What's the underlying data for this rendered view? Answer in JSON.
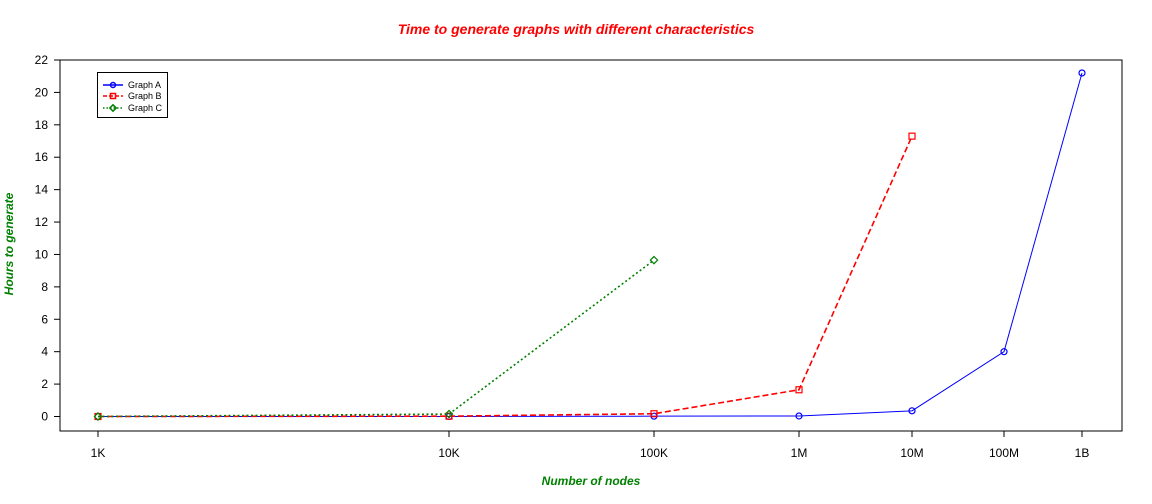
{
  "chart_data": {
    "type": "line",
    "title": "Time to generate graphs with different characteristics",
    "xlabel": "Number of nodes",
    "ylabel": "Hours to generate",
    "x_scale": "log",
    "x": [
      1000,
      10000,
      100000,
      1000000,
      10000000,
      100000000,
      1000000000
    ],
    "xtick_labels": [
      "1K",
      "10K",
      "100K",
      "1M",
      "10M",
      "100M",
      "1B"
    ],
    "ylim": [
      0,
      22
    ],
    "yticks": [
      0,
      2,
      4,
      6,
      8,
      10,
      12,
      14,
      16,
      18,
      20,
      22
    ],
    "grid": false,
    "legend_position": "top-left",
    "series": [
      {
        "name": "Graph A",
        "color": "#0000ff",
        "line_style": "solid",
        "marker": "circle",
        "x": [
          1000,
          10000,
          100000,
          1000000,
          10000000,
          100000000,
          1000000000
        ],
        "values": [
          0,
          0,
          0.02,
          0.03,
          0.35,
          4.0,
          21.2
        ]
      },
      {
        "name": "Graph B",
        "color": "#ff0000",
        "line_style": "dashed",
        "marker": "square",
        "x": [
          1000,
          10000,
          100000,
          1000000,
          10000000
        ],
        "values": [
          0,
          0.02,
          0.17,
          1.65,
          17.3
        ]
      },
      {
        "name": "Graph C",
        "color": "#008000",
        "line_style": "dotted",
        "marker": "diamond",
        "x": [
          1000,
          10000,
          100000
        ],
        "values": [
          0,
          0.15,
          9.65
        ]
      }
    ]
  }
}
